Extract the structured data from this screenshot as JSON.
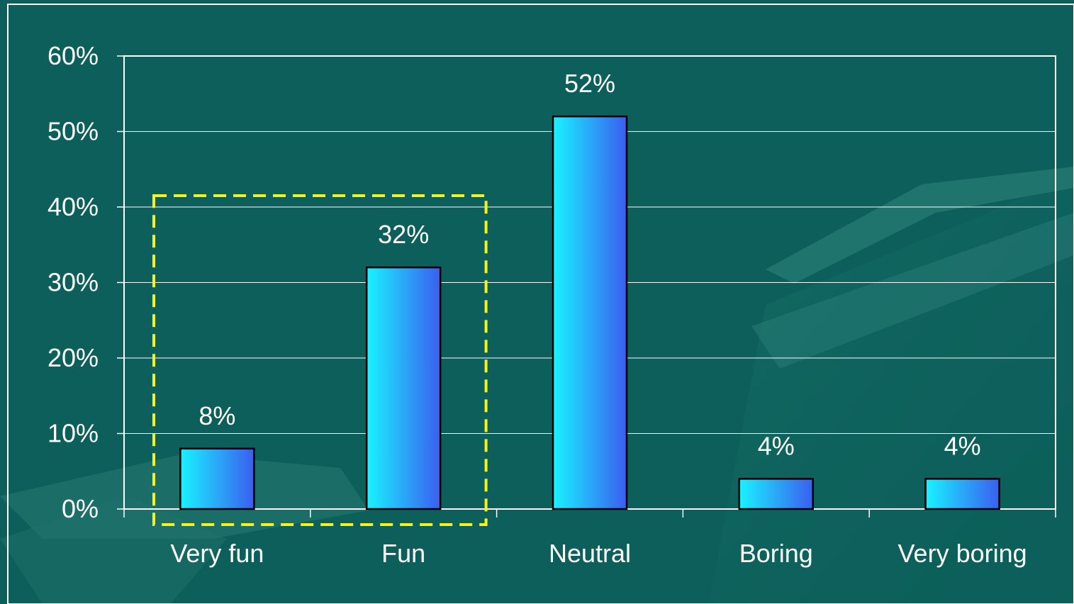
{
  "colors": {
    "background": "#0c5f5a",
    "frame": "#ffffff",
    "bar_gradient_start": "#19f3ff",
    "bar_gradient_end": "#3a5ef0",
    "highlight_box": "#f6f21c"
  },
  "chart_data": {
    "type": "bar",
    "title": "",
    "xlabel": "",
    "ylabel": "",
    "categories": [
      "Very fun",
      "Fun",
      "Neutral",
      "Boring",
      "Very boring"
    ],
    "values": [
      8,
      32,
      52,
      4,
      4
    ],
    "data_labels": [
      "8%",
      "32%",
      "52%",
      "4%",
      "4%"
    ],
    "ylim": [
      0,
      60
    ],
    "yticks": [
      0,
      10,
      20,
      30,
      40,
      50,
      60
    ],
    "ytick_labels": [
      "0%",
      "10%",
      "20%",
      "30%",
      "40%",
      "50%",
      "60%"
    ],
    "grid": true,
    "legend": "none",
    "annotation": {
      "type": "dashed-box",
      "color": "yellow",
      "encloses": [
        "Very fun",
        "Fun"
      ]
    }
  }
}
